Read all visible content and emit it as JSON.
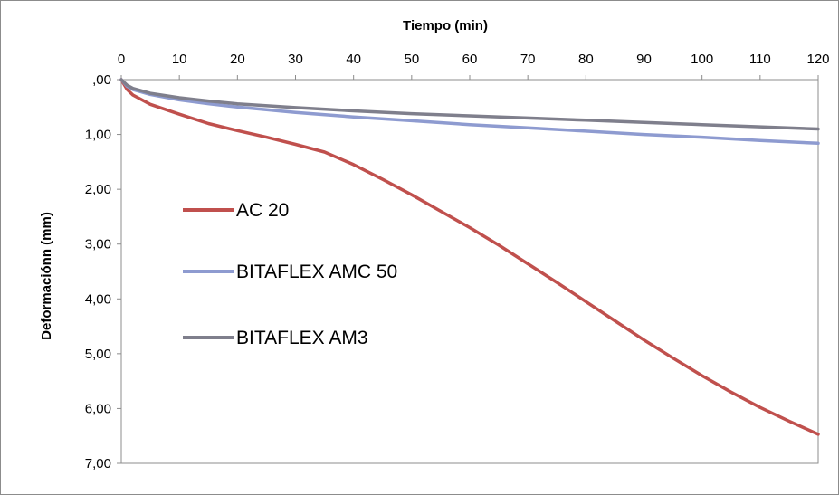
{
  "chart_data": {
    "type": "line",
    "title": "",
    "xlabel": "Tiempo (min)",
    "ylabel": "Deformaciónn (mm)",
    "xlim": [
      0,
      120
    ],
    "ylim": [
      0,
      7
    ],
    "y_inverted": true,
    "x_axis_position": "top",
    "grid": false,
    "legend_position": "inside-left",
    "x_ticks": [
      0,
      10,
      20,
      30,
      40,
      50,
      60,
      70,
      80,
      90,
      100,
      110,
      120
    ],
    "x_tick_labels": [
      "0",
      "10",
      "20",
      "30",
      "40",
      "50",
      "60",
      "70",
      "80",
      "90",
      "100",
      "110",
      "120"
    ],
    "y_ticks": [
      0,
      1,
      2,
      3,
      4,
      5,
      6,
      7
    ],
    "y_tick_labels": [
      ",00",
      "1,00",
      "2,00",
      "3,00",
      "4,00",
      "5,00",
      "6,00",
      "7,00"
    ],
    "series": [
      {
        "name": "AC 20",
        "color": "#c0504d",
        "x": [
          0,
          1,
          2,
          5,
          10,
          15,
          20,
          25,
          30,
          35,
          40,
          45,
          50,
          55,
          60,
          65,
          70,
          75,
          80,
          85,
          90,
          95,
          100,
          105,
          110,
          115,
          120
        ],
        "y": [
          0,
          0.18,
          0.28,
          0.45,
          0.63,
          0.8,
          0.93,
          1.05,
          1.18,
          1.32,
          1.55,
          1.82,
          2.1,
          2.4,
          2.7,
          3.02,
          3.36,
          3.7,
          4.05,
          4.4,
          4.75,
          5.08,
          5.4,
          5.7,
          5.98,
          6.23,
          6.47
        ]
      },
      {
        "name": "BITAFLEX AMC 50",
        "color": "#8e9bd0",
        "x": [
          0,
          1,
          2,
          5,
          10,
          15,
          20,
          30,
          40,
          50,
          60,
          70,
          80,
          90,
          100,
          110,
          120
        ],
        "y": [
          0,
          0.12,
          0.18,
          0.27,
          0.37,
          0.44,
          0.5,
          0.6,
          0.68,
          0.75,
          0.82,
          0.88,
          0.94,
          1.0,
          1.05,
          1.11,
          1.16
        ]
      },
      {
        "name": "BITAFLEX AM3",
        "color": "#7f7f8c",
        "x": [
          0,
          1,
          2,
          5,
          10,
          15,
          20,
          30,
          40,
          50,
          60,
          70,
          80,
          90,
          100,
          110,
          120
        ],
        "y": [
          0,
          0.1,
          0.16,
          0.25,
          0.33,
          0.39,
          0.44,
          0.51,
          0.57,
          0.62,
          0.66,
          0.7,
          0.74,
          0.78,
          0.82,
          0.86,
          0.9
        ]
      }
    ]
  }
}
